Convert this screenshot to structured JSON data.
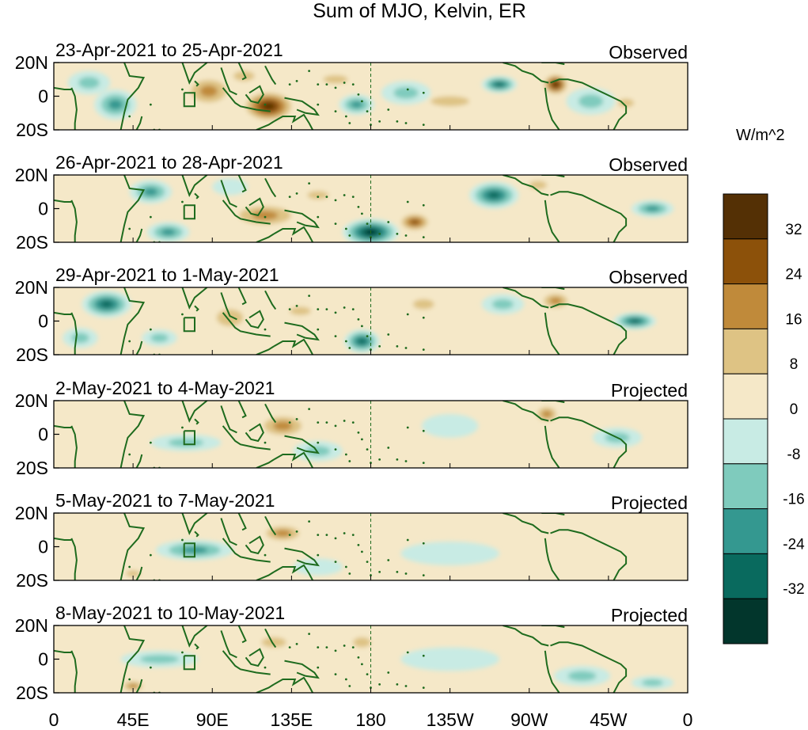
{
  "title": "Sum of MJO, Kelvin, ER",
  "units": "W/m^2",
  "colors": {
    "background": "#ffffff",
    "land_outline": "#1e6b1e",
    "frame": "#000000",
    "dateline": "#1e6b1e"
  },
  "chart_data": {
    "type": "heatmap",
    "title": "Sum of MJO, Kelvin, ER",
    "field": "OLR anomaly (sum of MJO, Kelvin and ER filtered components)",
    "units": "W/m^2",
    "x_tick_labels": [
      "0",
      "45E",
      "90E",
      "135E",
      "180",
      "135W",
      "90W",
      "45W",
      "0"
    ],
    "x_ticks_deg_east": [
      0,
      45,
      90,
      135,
      180,
      225,
      270,
      315,
      360
    ],
    "y_tick_labels": [
      "20N",
      "0",
      "20S"
    ],
    "ylim": [
      -20,
      20
    ],
    "xlim": [
      0,
      360
    ],
    "dateline_deg_east": 180,
    "colorbar": {
      "levels": [
        -40,
        -32,
        -24,
        -16,
        -8,
        0,
        8,
        16,
        24,
        32,
        40
      ],
      "tick_labels": [
        "32",
        "24",
        "16",
        "8",
        "0",
        "-8",
        "-16",
        "-24",
        "-32"
      ],
      "colors": [
        "#02362c",
        "#096a5e",
        "#349890",
        "#7fcbbd",
        "#c8ebe4",
        "#f5e8c8",
        "#dec384",
        "#c08a3a",
        "#8c510a",
        "#543005"
      ]
    },
    "panels": [
      {
        "period": "23-Apr-2021 to 25-Apr-2021",
        "status": "Observed",
        "blobs": [
          {
            "lon": 122,
            "lat": -6,
            "value": 34,
            "rx": 16,
            "ry": 10
          },
          {
            "lon": 88,
            "lat": 3,
            "value": 20,
            "rx": 15,
            "ry": 10
          },
          {
            "lon": 108,
            "lat": 12,
            "value": 16,
            "rx": 12,
            "ry": 6
          },
          {
            "lon": 160,
            "lat": 10,
            "value": 10,
            "rx": 14,
            "ry": 5
          },
          {
            "lon": 172,
            "lat": -5,
            "value": -18,
            "rx": 10,
            "ry": 6
          },
          {
            "lon": 225,
            "lat": -3,
            "value": 12,
            "rx": 22,
            "ry": 6
          },
          {
            "lon": 253,
            "lat": 7,
            "value": -26,
            "rx": 10,
            "ry": 5
          },
          {
            "lon": 285,
            "lat": 7,
            "value": 34,
            "rx": 8,
            "ry": 7
          },
          {
            "lon": 325,
            "lat": -4,
            "value": 16,
            "rx": 9,
            "ry": 5
          },
          {
            "lon": 35,
            "lat": -5,
            "value": -24,
            "rx": 12,
            "ry": 9
          },
          {
            "lon": 20,
            "lat": 8,
            "value": -12,
            "rx": 12,
            "ry": 7
          },
          {
            "lon": 200,
            "lat": 2,
            "value": -10,
            "rx": 14,
            "ry": 7
          },
          {
            "lon": 305,
            "lat": -3,
            "value": -10,
            "rx": 14,
            "ry": 8
          }
        ]
      },
      {
        "period": "26-Apr-2021 to 28-Apr-2021",
        "status": "Observed",
        "blobs": [
          {
            "lon": 120,
            "lat": -4,
            "value": 24,
            "rx": 22,
            "ry": 8
          },
          {
            "lon": 55,
            "lat": 10,
            "value": -20,
            "rx": 12,
            "ry": 7
          },
          {
            "lon": 65,
            "lat": -14,
            "value": -24,
            "rx": 12,
            "ry": 6
          },
          {
            "lon": 180,
            "lat": -14,
            "value": -36,
            "rx": 16,
            "ry": 8
          },
          {
            "lon": 205,
            "lat": -8,
            "value": 30,
            "rx": 10,
            "ry": 6
          },
          {
            "lon": 250,
            "lat": 8,
            "value": -32,
            "rx": 14,
            "ry": 8
          },
          {
            "lon": 340,
            "lat": 0,
            "value": -22,
            "rx": 12,
            "ry": 5
          },
          {
            "lon": 150,
            "lat": 8,
            "value": 16,
            "rx": 12,
            "ry": 5
          },
          {
            "lon": 275,
            "lat": 14,
            "value": 12,
            "rx": 10,
            "ry": 5
          },
          {
            "lon": 100,
            "lat": 13,
            "value": -8,
            "rx": 10,
            "ry": 5
          }
        ]
      },
      {
        "period": "29-Apr-2021 to 1-May-2021",
        "status": "Observed",
        "blobs": [
          {
            "lon": 30,
            "lat": 10,
            "value": -30,
            "rx": 14,
            "ry": 8
          },
          {
            "lon": 15,
            "lat": -10,
            "value": -16,
            "rx": 10,
            "ry": 6
          },
          {
            "lon": 60,
            "lat": -10,
            "value": -16,
            "rx": 10,
            "ry": 5
          },
          {
            "lon": 100,
            "lat": 2,
            "value": 12,
            "rx": 15,
            "ry": 10
          },
          {
            "lon": 175,
            "lat": -12,
            "value": -30,
            "rx": 10,
            "ry": 7
          },
          {
            "lon": 285,
            "lat": 12,
            "value": 24,
            "rx": 10,
            "ry": 6
          },
          {
            "lon": 330,
            "lat": 0,
            "value": -28,
            "rx": 12,
            "ry": 5
          },
          {
            "lon": 255,
            "lat": 10,
            "value": -16,
            "rx": 12,
            "ry": 6
          },
          {
            "lon": 210,
            "lat": 10,
            "value": 10,
            "rx": 12,
            "ry": 6
          },
          {
            "lon": 140,
            "lat": 6,
            "value": 10,
            "rx": 12,
            "ry": 5
          }
        ]
      },
      {
        "period": "2-May-2021 to 4-May-2021",
        "status": "Projected",
        "blobs": [
          {
            "lon": 130,
            "lat": 5,
            "value": 20,
            "rx": 16,
            "ry": 8
          },
          {
            "lon": 75,
            "lat": -5,
            "value": -12,
            "rx": 20,
            "ry": 5
          },
          {
            "lon": 150,
            "lat": -10,
            "value": -12,
            "rx": 14,
            "ry": 6
          },
          {
            "lon": 280,
            "lat": 12,
            "value": 20,
            "rx": 8,
            "ry": 6
          },
          {
            "lon": 320,
            "lat": -2,
            "value": -10,
            "rx": 14,
            "ry": 6
          },
          {
            "lon": 225,
            "lat": 5,
            "value": -8,
            "rx": 16,
            "ry": 7
          },
          {
            "lon": 195,
            "lat": -5,
            "value": 6,
            "rx": 12,
            "ry": 6
          }
        ]
      },
      {
        "period": "5-May-2021 to 7-May-2021",
        "status": "Projected",
        "blobs": [
          {
            "lon": 80,
            "lat": -2,
            "value": -18,
            "rx": 22,
            "ry": 6
          },
          {
            "lon": 130,
            "lat": 8,
            "value": 18,
            "rx": 14,
            "ry": 6
          },
          {
            "lon": 50,
            "lat": 10,
            "value": 6,
            "rx": 16,
            "ry": 6
          },
          {
            "lon": 150,
            "lat": -12,
            "value": -8,
            "rx": 14,
            "ry": 5
          },
          {
            "lon": 225,
            "lat": -4,
            "value": -6,
            "rx": 28,
            "ry": 7
          },
          {
            "lon": 300,
            "lat": 10,
            "value": 6,
            "rx": 16,
            "ry": 6
          },
          {
            "lon": 45,
            "lat": -16,
            "value": 10,
            "rx": 8,
            "ry": 4
          }
        ]
      },
      {
        "period": "8-May-2021 to 10-May-2021",
        "status": "Projected",
        "blobs": [
          {
            "lon": 60,
            "lat": 0,
            "value": -14,
            "rx": 22,
            "ry": 5
          },
          {
            "lon": 125,
            "lat": 10,
            "value": 12,
            "rx": 14,
            "ry": 6
          },
          {
            "lon": 45,
            "lat": -16,
            "value": 18,
            "rx": 8,
            "ry": 4
          },
          {
            "lon": 300,
            "lat": -10,
            "value": -10,
            "rx": 16,
            "ry": 6
          },
          {
            "lon": 340,
            "lat": -14,
            "value": -10,
            "rx": 12,
            "ry": 4
          },
          {
            "lon": 225,
            "lat": 0,
            "value": -6,
            "rx": 28,
            "ry": 7
          },
          {
            "lon": 90,
            "lat": -12,
            "value": 6,
            "rx": 14,
            "ry": 5
          },
          {
            "lon": 175,
            "lat": 10,
            "value": 10,
            "rx": 10,
            "ry": 6
          }
        ]
      }
    ]
  }
}
